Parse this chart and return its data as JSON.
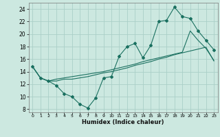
{
  "xlabel": "Humidex (Indice chaleur)",
  "background_color": "#cce8e0",
  "grid_color": "#aacfc8",
  "line_color": "#1a7060",
  "xlim": [
    -0.5,
    23.5
  ],
  "ylim": [
    7.5,
    25.0
  ],
  "xticks": [
    0,
    1,
    2,
    3,
    4,
    5,
    6,
    7,
    8,
    9,
    10,
    11,
    12,
    13,
    14,
    15,
    16,
    17,
    18,
    19,
    20,
    21,
    22,
    23
  ],
  "yticks": [
    8,
    10,
    12,
    14,
    16,
    18,
    20,
    22,
    24
  ],
  "line1_x": [
    0,
    1,
    2,
    3,
    4,
    5,
    6,
    7,
    8,
    9,
    10,
    11,
    12,
    13,
    14,
    15,
    16,
    17,
    18,
    19,
    20,
    21,
    22,
    23
  ],
  "line1_y": [
    14.8,
    13.0,
    12.5,
    11.8,
    10.5,
    10.0,
    8.8,
    8.2,
    9.8,
    13.0,
    13.2,
    16.5,
    18.0,
    18.5,
    16.2,
    18.2,
    22.0,
    22.2,
    24.3,
    22.8,
    22.5,
    20.5,
    19.0,
    17.5
  ],
  "line2_x": [
    0,
    1,
    2,
    3,
    4,
    5,
    6,
    7,
    8,
    9,
    10,
    11,
    12,
    13,
    14,
    15,
    16,
    17,
    18,
    19,
    20,
    21,
    22,
    23
  ],
  "line2_y": [
    14.8,
    13.0,
    12.5,
    12.5,
    12.8,
    12.8,
    13.0,
    13.2,
    13.5,
    13.8,
    14.0,
    14.3,
    14.6,
    15.0,
    15.3,
    15.6,
    16.0,
    16.3,
    16.7,
    17.0,
    17.3,
    17.6,
    17.9,
    15.7
  ],
  "line3_x": [
    0,
    1,
    2,
    3,
    4,
    5,
    6,
    7,
    8,
    9,
    10,
    11,
    12,
    13,
    14,
    15,
    16,
    17,
    18,
    19,
    20,
    21,
    22,
    23
  ],
  "line3_y": [
    14.8,
    13.0,
    12.5,
    12.8,
    13.0,
    13.2,
    13.4,
    13.6,
    13.8,
    14.0,
    14.3,
    14.6,
    14.9,
    15.2,
    15.6,
    15.9,
    16.2,
    16.5,
    16.8,
    17.1,
    20.5,
    19.0,
    17.7,
    15.8
  ]
}
